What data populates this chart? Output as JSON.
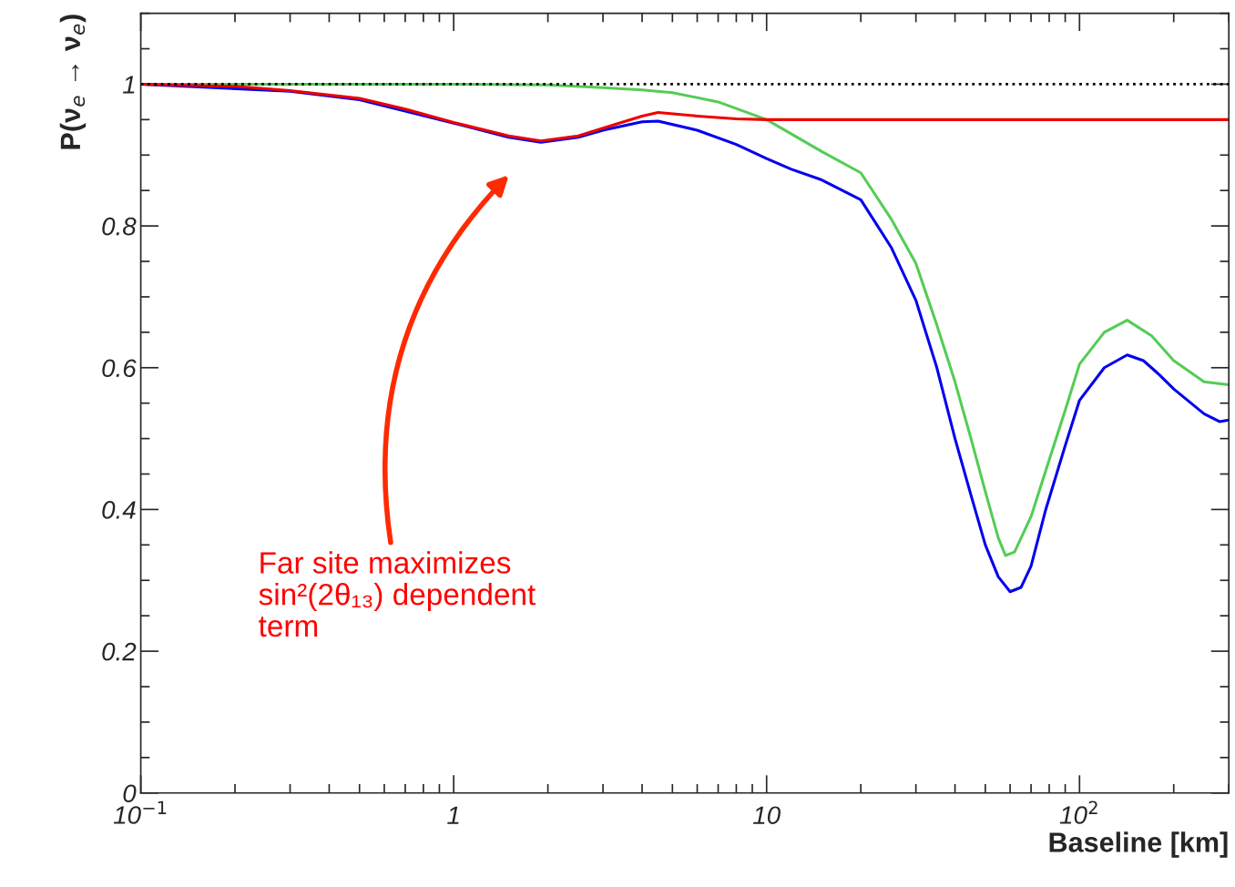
{
  "chart_data": {
    "type": "line",
    "xlabel": "Baseline [km]",
    "ylabel": "P(ν$_{e}$ → ν$_{e}$)",
    "log": "x",
    "xlim": [
      0.1,
      300
    ],
    "ylim": [
      0,
      1.1
    ],
    "xticks": [
      {
        "value": 0.1,
        "label": "10$^{−1}$"
      },
      1,
      10,
      {
        "value": 100,
        "label": "10$^{2}$"
      }
    ],
    "yticks": [
      0,
      0.2,
      0.4,
      0.6,
      0.8,
      1
    ],
    "grid": false,
    "legend": false,
    "marker": "none",
    "line_style": "solid",
    "series": [
      {
        "color": "#55cc55",
        "x": [
          0.1,
          0.5,
          1,
          2,
          3,
          4,
          5,
          7,
          10,
          15,
          20,
          25,
          30,
          35,
          40,
          45,
          50,
          55,
          58,
          62,
          70,
          80,
          90,
          100,
          120,
          142,
          170,
          200,
          250,
          300
        ],
        "values": [
          1.0,
          1.0,
          1.0,
          0.999,
          0.995,
          0.992,
          0.988,
          0.975,
          0.95,
          0.905,
          0.875,
          0.81,
          0.747,
          0.66,
          0.58,
          0.5,
          0.425,
          0.36,
          0.335,
          0.34,
          0.39,
          0.47,
          0.54,
          0.605,
          0.65,
          0.667,
          0.645,
          0.61,
          0.58,
          0.576
        ]
      },
      {
        "color": "#0000ee",
        "x": [
          0.1,
          0.2,
          0.3,
          0.5,
          0.7,
          1,
          1.5,
          1.9,
          2.5,
          3,
          4,
          4.5,
          6,
          8,
          10,
          12,
          15,
          20,
          25,
          30,
          35,
          40,
          45,
          50,
          55,
          60,
          65,
          70,
          78,
          90,
          100,
          120,
          142,
          160,
          180,
          200,
          250,
          280,
          300
        ],
        "values": [
          1.0,
          null,
          0.99,
          0.978,
          0.962,
          0.945,
          0.925,
          0.918,
          0.925,
          0.935,
          0.947,
          0.948,
          0.935,
          0.915,
          0.895,
          0.88,
          0.865,
          0.837,
          0.77,
          0.695,
          0.6,
          0.5,
          0.42,
          0.35,
          0.305,
          0.284,
          0.29,
          0.32,
          0.4,
          0.49,
          0.554,
          0.6,
          0.618,
          0.61,
          0.59,
          0.57,
          0.535,
          0.524,
          0.526
        ]
      },
      {
        "color": "#ee0000",
        "x": [
          0.1,
          0.2,
          0.3,
          0.5,
          0.7,
          1,
          1.5,
          1.9,
          2.5,
          3,
          4,
          4.5,
          6,
          8,
          10,
          20,
          50,
          100,
          300
        ],
        "values": [
          1.0,
          0.997,
          0.991,
          0.98,
          0.965,
          0.946,
          0.927,
          0.92,
          0.927,
          0.938,
          0.955,
          0.96,
          0.955,
          0.951,
          0.95,
          0.95,
          0.95,
          0.95,
          0.95
        ]
      }
    ],
    "ref_lines": [
      {
        "axis": "y",
        "value": 1,
        "color": "#000000",
        "line_style": "dotted"
      }
    ],
    "annotations": [
      "Far site maximizes\nsin²(2θ₁₃) dependent\nterm"
    ]
  }
}
